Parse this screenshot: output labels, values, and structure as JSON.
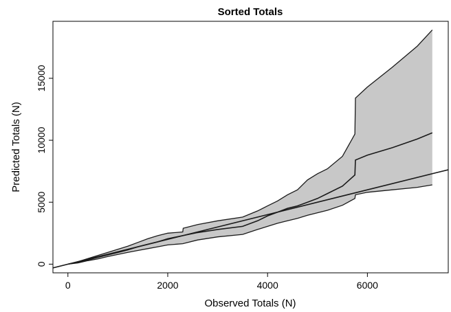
{
  "chart_data": {
    "type": "line",
    "title": "Sorted Totals",
    "xlabel": "Observed Totals (N)",
    "ylabel": "Predicted Totals (N)",
    "xlim": [
      -300,
      7620
    ],
    "ylim": [
      -700,
      19600
    ],
    "x_ticks": [
      0,
      2000,
      4000,
      6000
    ],
    "y_ticks": [
      0,
      5000,
      10000,
      15000
    ],
    "grid": false,
    "series": [
      {
        "role": "median",
        "x": [
          0,
          200,
          400,
          600,
          800,
          1000,
          1200,
          1400,
          1600,
          1800,
          2000,
          2300,
          2600,
          3000,
          3500,
          3800,
          4000,
          4200,
          4400,
          4600,
          4800,
          5000,
          5200,
          5500,
          5750,
          5760,
          6000,
          6500,
          7000,
          7300
        ],
        "y": [
          0,
          150,
          350,
          550,
          750,
          950,
          1150,
          1400,
          1600,
          1800,
          2050,
          2300,
          2550,
          2800,
          3050,
          3500,
          3900,
          4200,
          4500,
          4700,
          5000,
          5300,
          5700,
          6300,
          7200,
          8400,
          8800,
          9400,
          10100,
          10600
        ]
      },
      {
        "role": "upper-bound",
        "x": [
          0,
          200,
          400,
          600,
          800,
          1000,
          1200,
          1400,
          1600,
          1800,
          2000,
          2300,
          2310,
          2600,
          3000,
          3500,
          3800,
          4000,
          4200,
          4400,
          4600,
          4800,
          5000,
          5200,
          5500,
          5750,
          5760,
          6000,
          6500,
          7000,
          7300
        ],
        "y": [
          0,
          200,
          450,
          700,
          950,
          1200,
          1450,
          1750,
          2050,
          2300,
          2500,
          2600,
          2900,
          3200,
          3500,
          3800,
          4300,
          4700,
          5100,
          5600,
          6000,
          6800,
          7300,
          7700,
          8700,
          10500,
          13400,
          14300,
          15900,
          17600,
          18900
        ]
      },
      {
        "role": "lower-bound",
        "x": [
          0,
          200,
          400,
          600,
          800,
          1000,
          1200,
          1400,
          1600,
          1800,
          2000,
          2300,
          2600,
          3000,
          3500,
          3800,
          4000,
          4200,
          4400,
          4600,
          4800,
          5000,
          5200,
          5500,
          5750,
          5760,
          6000,
          6500,
          7000,
          7300
        ],
        "y": [
          0,
          100,
          280,
          420,
          620,
          780,
          950,
          1100,
          1250,
          1400,
          1550,
          1650,
          1950,
          2200,
          2400,
          2800,
          3050,
          3300,
          3500,
          3700,
          3950,
          4150,
          4350,
          4750,
          5300,
          5600,
          5800,
          6000,
          6200,
          6400
        ]
      },
      {
        "role": "reference-line-y-equals-x",
        "x": [
          -300,
          7620
        ],
        "y": [
          -300,
          7620
        ]
      }
    ],
    "band_color": "#c8c8c8",
    "line_color": "#1a1a1a"
  }
}
